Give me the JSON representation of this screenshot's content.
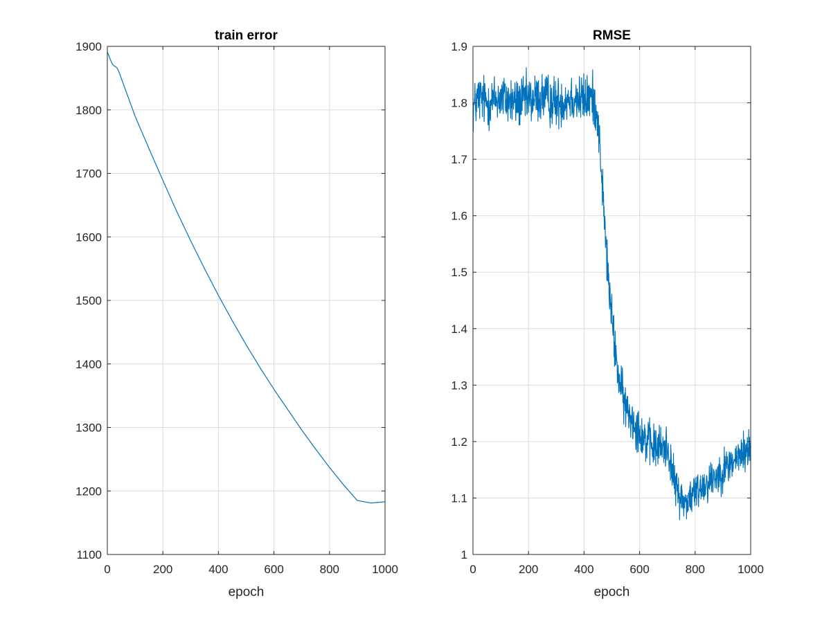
{
  "chart_data": [
    {
      "type": "line",
      "title": "train error",
      "xlabel": "epoch",
      "ylabel": "",
      "xlim": [
        0,
        1000
      ],
      "ylim": [
        1100,
        1900
      ],
      "xticks": [
        0,
        200,
        400,
        600,
        800,
        1000
      ],
      "yticks": [
        1100,
        1200,
        1300,
        1400,
        1500,
        1600,
        1700,
        1800,
        1900
      ],
      "grid": true,
      "color": "#0072BD",
      "series": [
        {
          "x": [
            1,
            5,
            10,
            15,
            20,
            25,
            30,
            35,
            40,
            50,
            60,
            80,
            100,
            150,
            200,
            250,
            300,
            350,
            400,
            450,
            500,
            550,
            600,
            650,
            700,
            750,
            800,
            850,
            900,
            950,
            1000
          ],
          "values": [
            1890,
            1886,
            1880,
            1875,
            1871,
            1869,
            1868,
            1866,
            1862,
            1850,
            1838,
            1814,
            1790,
            1739,
            1689,
            1640,
            1594,
            1550,
            1508,
            1468,
            1430,
            1394,
            1360,
            1328,
            1296,
            1266,
            1237,
            1210,
            1185,
            1181,
            1183
          ]
        }
      ]
    },
    {
      "type": "line",
      "title": "RMSE",
      "xlabel": "epoch",
      "ylabel": "",
      "xlim": [
        0,
        1000
      ],
      "ylim": [
        1,
        1.9
      ],
      "xticks": [
        0,
        200,
        400,
        600,
        800,
        1000
      ],
      "yticks": [
        1,
        1.1,
        1.2,
        1.3,
        1.4,
        1.5,
        1.6,
        1.7,
        1.8,
        1.9
      ],
      "grid": true,
      "color": "#0072BD",
      "series": [
        {
          "x": [
            1,
            20,
            50,
            100,
            150,
            200,
            250,
            300,
            350,
            400,
            425,
            440,
            450,
            460,
            470,
            480,
            490,
            500,
            510,
            520,
            530,
            540,
            550,
            575,
            600,
            625,
            650,
            675,
            700,
            710,
            720,
            730,
            740,
            750,
            760,
            780,
            800,
            820,
            850,
            875,
            900,
            925,
            950,
            975,
            1000
          ],
          "values": [
            1.79,
            1.81,
            1.8,
            1.81,
            1.8,
            1.805,
            1.81,
            1.8,
            1.81,
            1.805,
            1.81,
            1.8,
            1.77,
            1.7,
            1.62,
            1.54,
            1.47,
            1.42,
            1.37,
            1.33,
            1.3,
            1.28,
            1.26,
            1.24,
            1.22,
            1.2,
            1.19,
            1.19,
            1.19,
            1.17,
            1.14,
            1.12,
            1.11,
            1.1,
            1.09,
            1.1,
            1.11,
            1.12,
            1.13,
            1.14,
            1.15,
            1.16,
            1.17,
            1.18,
            1.19
          ]
        }
      ]
    }
  ]
}
